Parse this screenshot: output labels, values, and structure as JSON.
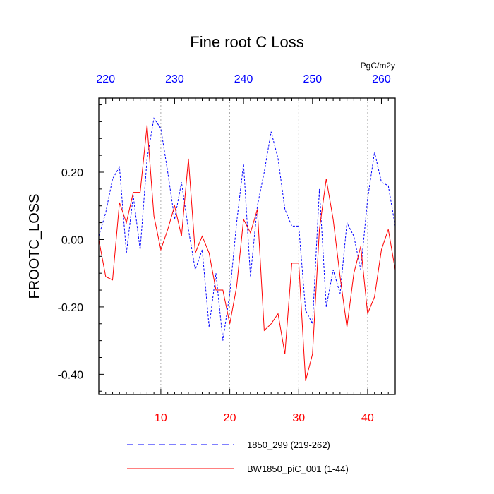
{
  "chart_data": {
    "type": "line",
    "title": "Fine root C Loss",
    "ylabel": "FROOTC_LOSS",
    "units": "PgC/m2y",
    "xlim": [
      1,
      44
    ],
    "ylim": [
      -0.46,
      0.42
    ],
    "bottom_axis": {
      "ticks": [
        10,
        20,
        30,
        40
      ],
      "labels": [
        "10",
        "20",
        "30",
        "40"
      ],
      "color": "#ff0000"
    },
    "top_axis": {
      "ticks": [
        220,
        230,
        240,
        250,
        260
      ],
      "labels": [
        "220",
        "230",
        "240",
        "250",
        "260"
      ],
      "offset": 218,
      "color": "#0000ff"
    },
    "y_ticks": [
      0.2,
      0.0,
      -0.2,
      -0.4
    ],
    "y_tick_labels": [
      "0.20",
      "0.00",
      "-0.20",
      "-0.40"
    ],
    "grid": "dotted vertical lines at bottom-axis ticks",
    "legend_position": "bottom",
    "series": [
      {
        "name": "1850_299 (219-262)",
        "color": "#0000ff",
        "style": "dashed",
        "x": [
          1,
          2,
          3,
          4,
          5,
          6,
          7,
          8,
          9,
          10,
          11,
          12,
          13,
          14,
          15,
          16,
          17,
          18,
          19,
          20,
          21,
          22,
          23,
          24,
          25,
          26,
          27,
          28,
          29,
          30,
          31,
          32,
          33,
          34,
          35,
          36,
          37,
          38,
          39,
          40,
          41,
          42,
          43,
          44
        ],
        "values": [
          0.01,
          0.08,
          0.18,
          0.215,
          -0.04,
          0.13,
          -0.03,
          0.24,
          0.36,
          0.33,
          0.2,
          0.06,
          0.17,
          0.03,
          -0.09,
          -0.03,
          -0.26,
          -0.1,
          -0.3,
          -0.16,
          0.05,
          0.225,
          -0.11,
          0.1,
          0.2,
          0.32,
          0.24,
          0.09,
          0.04,
          0.04,
          -0.21,
          -0.25,
          0.15,
          -0.2,
          -0.09,
          -0.16,
          0.05,
          0.01,
          -0.09,
          0.12,
          0.26,
          0.17,
          0.16,
          0.04
        ]
      },
      {
        "name": "BW1850_piC_001 (1-44)",
        "color": "#ff0000",
        "style": "solid",
        "x": [
          1,
          2,
          3,
          4,
          5,
          6,
          7,
          8,
          9,
          10,
          11,
          12,
          13,
          14,
          15,
          16,
          17,
          18,
          19,
          20,
          21,
          22,
          23,
          24,
          25,
          26,
          27,
          28,
          29,
          30,
          31,
          32,
          33,
          34,
          35,
          36,
          37,
          38,
          39,
          40,
          41,
          42,
          43,
          44
        ],
        "values": [
          0.0,
          -0.11,
          -0.12,
          0.11,
          0.05,
          0.14,
          0.14,
          0.34,
          0.07,
          -0.03,
          0.03,
          0.1,
          0.01,
          0.24,
          -0.04,
          0.01,
          -0.04,
          -0.15,
          -0.15,
          -0.25,
          -0.14,
          0.06,
          0.02,
          0.09,
          -0.27,
          -0.25,
          -0.22,
          -0.34,
          -0.07,
          -0.07,
          -0.42,
          -0.34,
          0.03,
          0.18,
          0.06,
          -0.11,
          -0.26,
          -0.1,
          -0.02,
          -0.22,
          -0.17,
          -0.03,
          0.03,
          -0.09
        ]
      }
    ]
  }
}
